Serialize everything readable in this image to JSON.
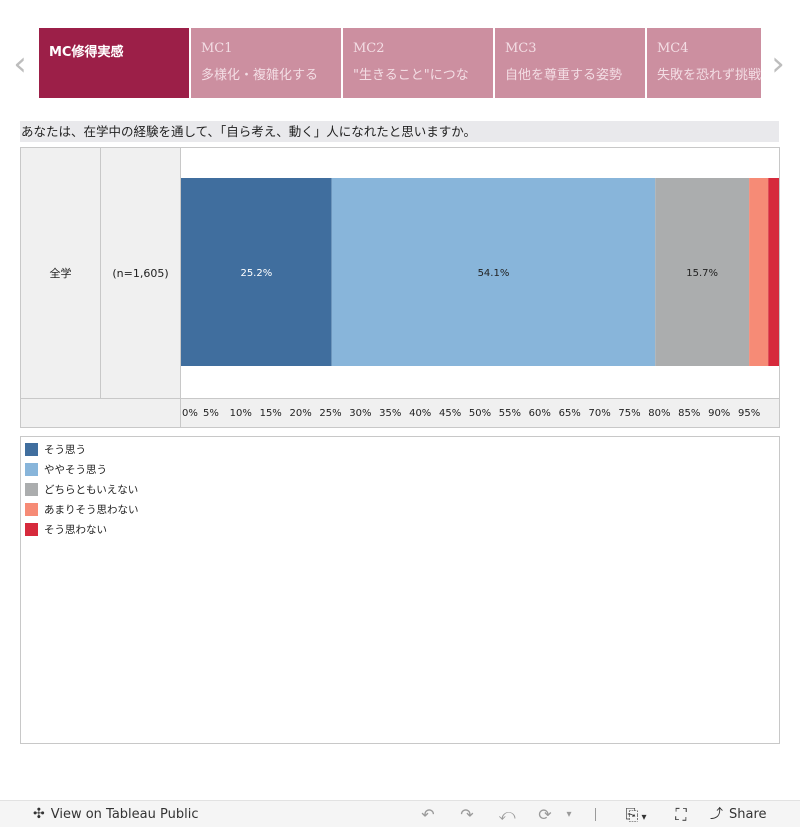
{
  "tabs": [
    {
      "code": "MC修得実感",
      "sub": ""
    },
    {
      "code": "MC1",
      "sub": "多様化・複雑化する"
    },
    {
      "code": "MC2",
      "sub": "\"生きること\"につな"
    },
    {
      "code": "MC3",
      "sub": "自他を尊重する姿勢"
    },
    {
      "code": "MC4",
      "sub": "失敗を恐れず挑戦"
    }
  ],
  "nav": {
    "prev": "‹",
    "next": "›"
  },
  "question": "あなたは、在学中の経験を通して、「自ら考え、動く」人になれたと思いますか。",
  "row": {
    "label": "全学",
    "n": "(n=1,605)"
  },
  "legend": [
    {
      "label": "そう思う",
      "color": "#406e9e"
    },
    {
      "label": "ややそう思う",
      "color": "#88b5da"
    },
    {
      "label": "どちらともいえない",
      "color": "#abadae"
    },
    {
      "label": "あまりそう思わない",
      "color": "#f68b76"
    },
    {
      "label": "そう思わない",
      "color": "#d62a3c"
    }
  ],
  "chart_data": {
    "type": "bar",
    "orientation": "horizontal-stacked-100",
    "categories": [
      "全学"
    ],
    "series": [
      {
        "name": "そう思う",
        "values": [
          25.2
        ],
        "label": "25.2%",
        "color": "#406e9e",
        "label_color": "#ffffff"
      },
      {
        "name": "ややそう思う",
        "values": [
          54.1
        ],
        "label": "54.1%",
        "color": "#88b5da",
        "label_color": "#222222"
      },
      {
        "name": "どちらともいえない",
        "values": [
          15.7
        ],
        "label": "15.7%",
        "color": "#abadae",
        "label_color": "#222222"
      },
      {
        "name": "あまりそう思わない",
        "values": [
          3.2
        ],
        "label": "",
        "color": "#f68b76",
        "label_color": "#222222"
      },
      {
        "name": "そう思わない",
        "values": [
          1.8
        ],
        "label": "",
        "color": "#d62a3c",
        "label_color": "#222222"
      }
    ],
    "xlim": [
      0,
      100
    ],
    "xticks": [
      "0%",
      "5%",
      "10%",
      "15%",
      "20%",
      "25%",
      "30%",
      "35%",
      "40%",
      "45%",
      "50%",
      "55%",
      "60%",
      "65%",
      "70%",
      "75%",
      "80%",
      "85%",
      "90%",
      "95%"
    ],
    "xtick_values": [
      0,
      5,
      10,
      15,
      20,
      25,
      30,
      35,
      40,
      45,
      50,
      55,
      60,
      65,
      70,
      75,
      80,
      85,
      90,
      95
    ],
    "legend_position": "bottom-left",
    "grid": false
  },
  "footer": {
    "view_label": "View on Tableau Public",
    "share_label": "Share",
    "icons": [
      "tableau-logo-icon",
      "undo-icon",
      "redo-icon",
      "revert-icon",
      "refresh-icon",
      "download-icon",
      "fullscreen-icon",
      "share-icon"
    ]
  }
}
